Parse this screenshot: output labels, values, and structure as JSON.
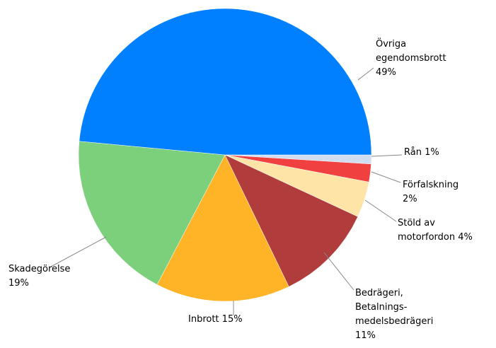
{
  "chart_data": {
    "type": "pie",
    "categories": [
      "Rån",
      "Förfalskning",
      "Stöld av\nmotorfordon",
      "Bedrägeri,\nBetalnings-\nmedelsbedrägeri",
      "Inbrott",
      "Skadegörelse",
      "Övriga\negendomsbrott"
    ],
    "values": [
      1,
      2,
      4,
      11,
      15,
      19,
      49
    ],
    "value_labels": [
      "1%",
      "2%",
      "4%",
      "11%",
      "15%",
      "19%",
      "49%"
    ],
    "colors": [
      "#d0dcf0",
      "#f04040",
      "#ffe4a8",
      "#b03c3c",
      "#ffb428",
      "#7cd07c",
      "#0080ff"
    ]
  }
}
